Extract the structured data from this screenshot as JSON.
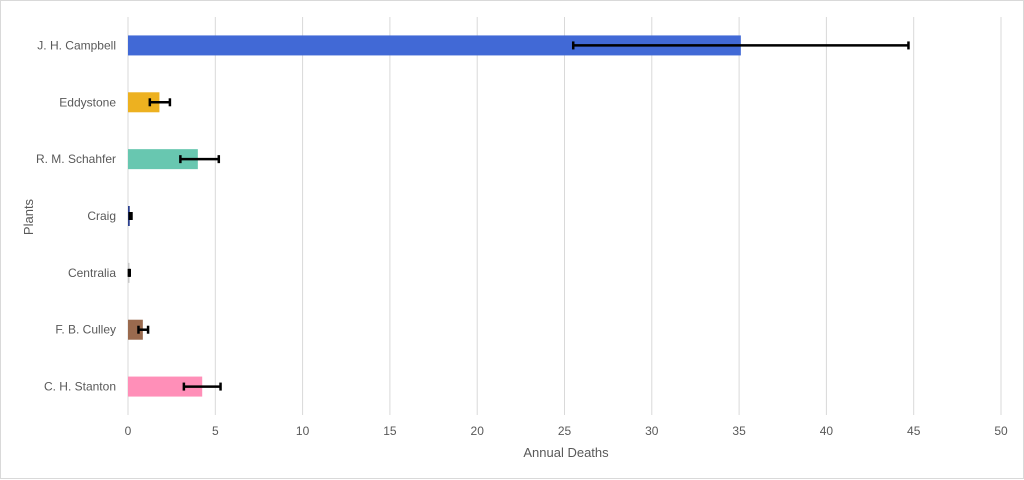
{
  "chart_data": {
    "type": "bar",
    "orientation": "horizontal",
    "categories": [
      "J. H. Campbell",
      "Eddystone",
      "R. M. Schahfer",
      "Craig",
      "Centralia",
      "F. B. Culley",
      "C. H. Stanton"
    ],
    "values": [
      35.1,
      1.8,
      4.0,
      0.1,
      0.05,
      0.85,
      4.25
    ],
    "error_low": [
      25.5,
      1.25,
      3.0,
      0.1,
      0.05,
      0.6,
      3.2
    ],
    "error_high": [
      44.7,
      2.4,
      5.2,
      0.2,
      0.1,
      1.15,
      5.3
    ],
    "colors": [
      "#4169d6",
      "#edb120",
      "#68c7b0",
      "#2b3f8f",
      "#c8c8c8",
      "#9a6a4e",
      "#ff8fb8"
    ],
    "xlim": [
      0,
      50
    ],
    "xticks": [
      "0",
      "5",
      "10",
      "15",
      "20",
      "25",
      "30",
      "35",
      "40",
      "45",
      "50"
    ],
    "xlabel": "Annual Deaths",
    "ylabel": "Plants",
    "grid": true,
    "error_bars": true
  }
}
